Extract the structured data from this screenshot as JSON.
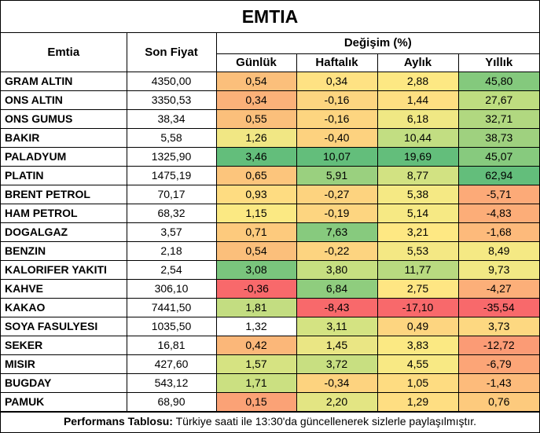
{
  "title": "EMTIA",
  "headers": {
    "commodity": "Emtia",
    "last_price": "Son Fiyat",
    "change_group": "Değişim (%)",
    "daily": "Günlük",
    "weekly": "Haftalık",
    "monthly": "Aylık",
    "yearly": "Yıllık"
  },
  "rows": [
    {
      "name": "GRAM ALTIN",
      "price": "4350,00",
      "daily": "0,54",
      "weekly": "0,34",
      "monthly": "2,88",
      "yearly": "45,80",
      "c": [
        "#fbbf7b",
        "#fee283",
        "#fde883",
        "#84c97d"
      ]
    },
    {
      "name": "ONS ALTIN",
      "price": "3350,53",
      "daily": "0,34",
      "weekly": "-0,16",
      "monthly": "1,44",
      "yearly": "27,67",
      "c": [
        "#fbb179",
        "#fdd580",
        "#fedf82",
        "#bedd80"
      ]
    },
    {
      "name": "ONS GUMUS",
      "price": "38,34",
      "daily": "0,55",
      "weekly": "-0,16",
      "monthly": "6,18",
      "yearly": "32,71",
      "c": [
        "#fbbf7b",
        "#fdd580",
        "#f0e884",
        "#b1d880"
      ]
    },
    {
      "name": "BAKIR",
      "price": "5,58",
      "daily": "1,26",
      "weekly": "-0,40",
      "monthly": "10,44",
      "yearly": "38,73",
      "c": [
        "#f1e784",
        "#fdd27f",
        "#c2de82",
        "#9fd17f"
      ]
    },
    {
      "name": "PALADYUM",
      "price": "1325,90",
      "daily": "3,46",
      "weekly": "10,07",
      "monthly": "19,69",
      "yearly": "45,07",
      "c": [
        "#63be7b",
        "#63be7b",
        "#63be7b",
        "#87ca7e"
      ]
    },
    {
      "name": "PLATIN",
      "price": "1475,19",
      "daily": "0,65",
      "weekly": "5,91",
      "monthly": "8,77",
      "yearly": "62,94",
      "c": [
        "#fcc57c",
        "#9ad07f",
        "#d2e282",
        "#63be7b"
      ]
    },
    {
      "name": "BRENT PETROL",
      "price": "70,17",
      "daily": "0,93",
      "weekly": "-0,27",
      "monthly": "5,38",
      "yearly": "-5,71",
      "c": [
        "#fedc81",
        "#fdd37f",
        "#f5e984",
        "#fcaa78"
      ]
    },
    {
      "name": "HAM PETROL",
      "price": "68,32",
      "daily": "1,15",
      "weekly": "-0,19",
      "monthly": "5,14",
      "yearly": "-4,83",
      "c": [
        "#fbe983",
        "#fdd580",
        "#f6e984",
        "#fcad78"
      ]
    },
    {
      "name": "DOGALGAZ",
      "price": "3,57",
      "daily": "0,71",
      "weekly": "7,63",
      "monthly": "3,21",
      "yearly": "-1,68",
      "c": [
        "#fdca7d",
        "#87ca7e",
        "#fee883",
        "#fdba7b"
      ]
    },
    {
      "name": "BENZIN",
      "price": "2,18",
      "daily": "0,54",
      "weekly": "-0,22",
      "monthly": "5,53",
      "yearly": "8,49",
      "c": [
        "#fbbf7b",
        "#fdd480",
        "#f4e884",
        "#f5e984"
      ]
    },
    {
      "name": "KALORIFER YAKITI",
      "price": "2,54",
      "daily": "3,08",
      "weekly": "3,80",
      "monthly": "11,77",
      "yearly": "9,73",
      "c": [
        "#7ac57d",
        "#c6df81",
        "#b9da80",
        "#f1e884"
      ]
    },
    {
      "name": "KAHVE",
      "price": "306,10",
      "daily": "-0,36",
      "weekly": "6,84",
      "monthly": "2,75",
      "yearly": "-4,27",
      "c": [
        "#f8696b",
        "#8fcd7e",
        "#fee683",
        "#fcaf79"
      ]
    },
    {
      "name": "KAKAO",
      "price": "7441,50",
      "daily": "1,81",
      "weekly": "-8,43",
      "monthly": "-17,10",
      "yearly": "-35,54",
      "c": [
        "#c3dd81",
        "#f8696b",
        "#f8696b",
        "#f8696b"
      ]
    },
    {
      "name": "SOYA FASULYESI",
      "price": "1035,50",
      "daily": "1,32",
      "weekly": "3,11",
      "monthly": "0,49",
      "yearly": "3,73",
      "c": [
        "#ecе683",
        "#d4e382",
        "#fdd580",
        "#fdd881"
      ]
    },
    {
      "name": "SEKER",
      "price": "16,81",
      "daily": "0,42",
      "weekly": "1,45",
      "monthly": "3,83",
      "yearly": "-12,72",
      "c": [
        "#fbb779",
        "#eae684",
        "#fbe983",
        "#fb9b75"
      ]
    },
    {
      "name": "MISIR",
      "price": "427,60",
      "daily": "1,57",
      "weekly": "3,72",
      "monthly": "4,55",
      "yearly": "-6,79",
      "c": [
        "#d6e382",
        "#c8df81",
        "#f8e984",
        "#fca577"
      ]
    },
    {
      "name": "BUGDAY",
      "price": "543,12",
      "daily": "1,71",
      "weekly": "-0,34",
      "monthly": "1,05",
      "yearly": "-1,43",
      "c": [
        "#cbe081",
        "#fdd37f",
        "#fedc81",
        "#fdbb7b"
      ]
    },
    {
      "name": "PAMUK",
      "price": "68,90",
      "daily": "0,15",
      "weekly": "2,20",
      "monthly": "1,29",
      "yearly": "0,76",
      "c": [
        "#fba276",
        "#e3e583",
        "#fede82",
        "#fdca7d"
      ]
    }
  ],
  "footer": {
    "label": "Performans Tablosu:",
    "text": " Türkiye saati ile 13:30'da güncellenerek sizlerle paylaşılmıştır."
  }
}
